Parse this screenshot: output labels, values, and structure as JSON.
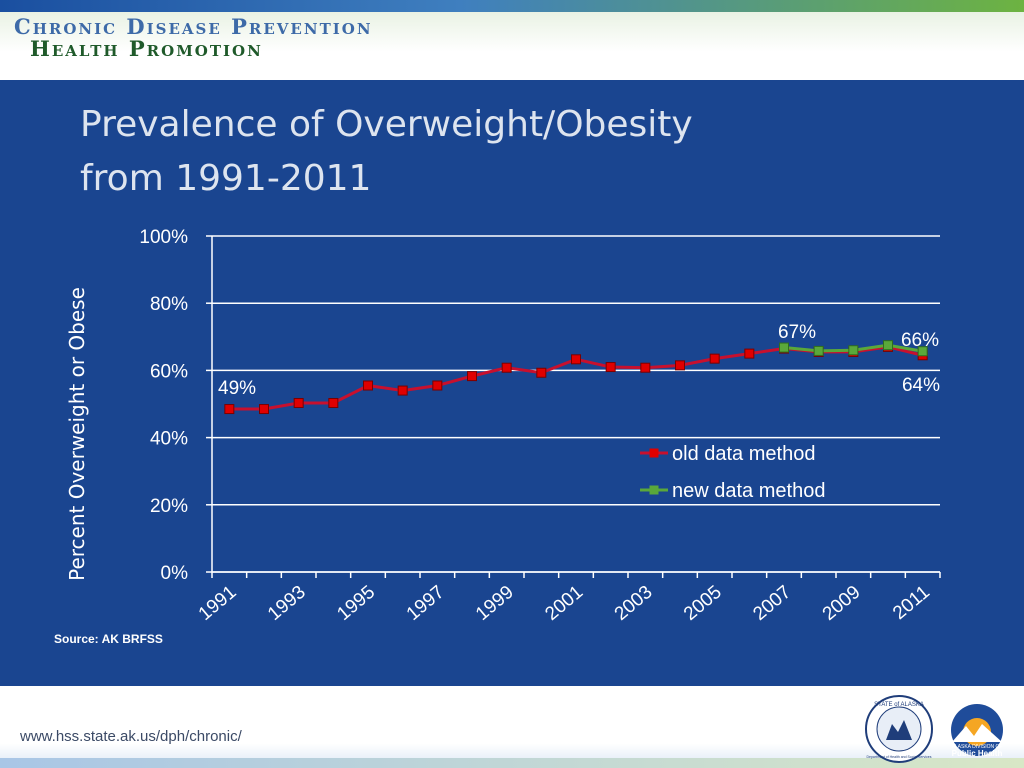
{
  "header": {
    "brand_line1": "Chronic Disease Prevention",
    "brand_line2": "Health Promotion"
  },
  "slide": {
    "title_line1": "Prevalence of Overweight/Obesity",
    "title_line2": "from 1991-2011",
    "source": "Source: AK BRFSS"
  },
  "footer": {
    "url": "www.hss.state.ak.us/dph/chronic/",
    "seal_text": "STATE of ALASKA",
    "seal_subtext": "Department of Health and Social Services",
    "logo_text_1": "ALASKA DIVISION OF",
    "logo_text_2": "Public Health"
  },
  "chart_data": {
    "type": "line",
    "title": "",
    "xlabel": "",
    "ylabel": "Percent Overweight or Obese",
    "ylim": [
      0,
      100
    ],
    "y_ticks": [
      "0%",
      "20%",
      "40%",
      "60%",
      "80%",
      "100%"
    ],
    "x_tick_labels": [
      "1991",
      "1993",
      "1995",
      "1997",
      "1999",
      "2001",
      "2003",
      "2005",
      "2007",
      "2009",
      "2011"
    ],
    "grid": true,
    "legend_position": "right-middle",
    "series": [
      {
        "name": "old data method",
        "color": "#c8102e",
        "marker_color": "#e00000",
        "x": [
          1991,
          1992,
          1993,
          1994,
          1995,
          1996,
          1997,
          1998,
          1999,
          2000,
          2001,
          2002,
          2003,
          2004,
          2005,
          2006,
          2007,
          2008,
          2009,
          2010,
          2011
        ],
        "values": [
          48.5,
          48.5,
          50.3,
          50.3,
          55.5,
          54,
          55.5,
          58.3,
          60.8,
          59.3,
          63.3,
          61,
          60.8,
          61.5,
          63.5,
          65,
          66.5,
          65.5,
          65.5,
          67,
          64.5
        ]
      },
      {
        "name": "new data method",
        "color": "#5aa83a",
        "marker_color": "#5aa83a",
        "x": [
          2007,
          2008,
          2009,
          2010,
          2011
        ],
        "values": [
          66.8,
          65.8,
          66,
          67.5,
          65.7
        ]
      }
    ],
    "annotations": [
      {
        "text": "49%"
      },
      {
        "text": "67%"
      },
      {
        "text": "66%"
      },
      {
        "text": "64%"
      }
    ]
  }
}
